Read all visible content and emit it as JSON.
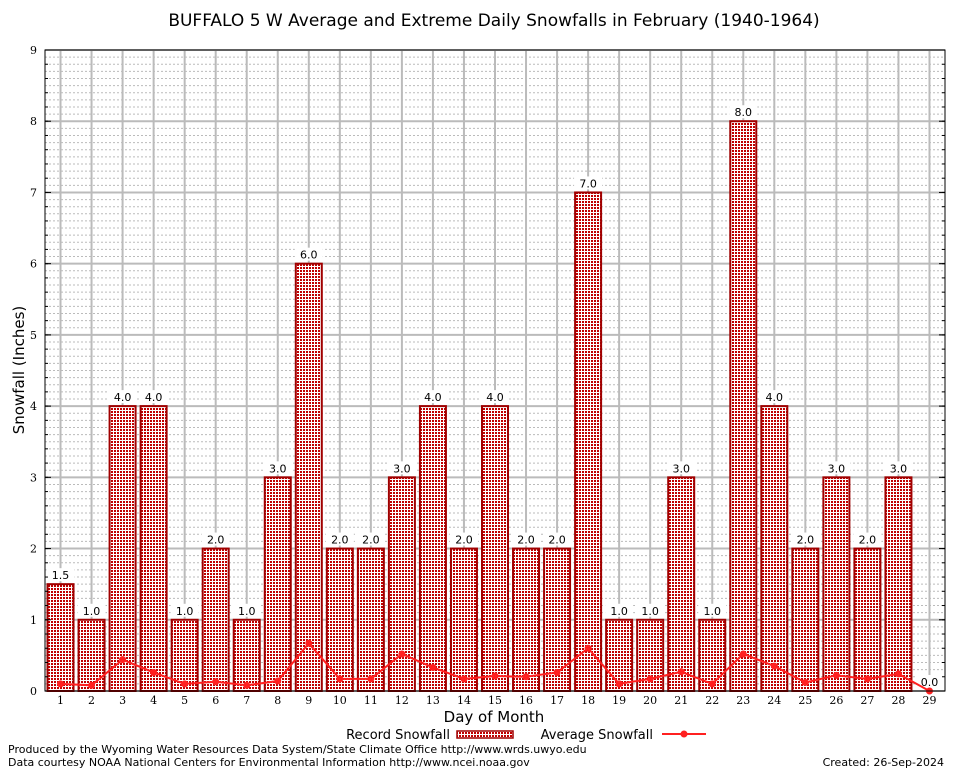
{
  "chart_data": {
    "type": "bar",
    "title": "BUFFALO 5 W Average and Extreme Daily Snowfalls in February (1940-1964)",
    "xlabel": "Day of Month",
    "ylabel": "Snowfall (Inches)",
    "ylim": [
      0,
      9
    ],
    "yticks": [
      0,
      1,
      2,
      3,
      4,
      5,
      6,
      7,
      8,
      9
    ],
    "grid": true,
    "legend_position": "bottom",
    "categories": [
      1,
      2,
      3,
      4,
      5,
      6,
      7,
      8,
      9,
      10,
      11,
      12,
      13,
      14,
      15,
      16,
      17,
      18,
      19,
      20,
      21,
      22,
      23,
      24,
      25,
      26,
      27,
      28,
      29
    ],
    "series": [
      {
        "name": "Record Snowfall",
        "type": "bar",
        "color": "#a00000",
        "values": [
          1.5,
          1.0,
          4.0,
          4.0,
          1.0,
          2.0,
          1.0,
          3.0,
          6.0,
          2.0,
          2.0,
          3.0,
          4.0,
          2.0,
          4.0,
          2.0,
          2.0,
          7.0,
          1.0,
          1.0,
          3.0,
          1.0,
          8.0,
          4.0,
          2.0,
          3.0,
          2.0,
          3.0,
          0.0
        ],
        "labels": [
          "1.5",
          "1.0",
          "4.0",
          "4.0",
          "1.0",
          "2.0",
          "1.0",
          "3.0",
          "6.0",
          "2.0",
          "2.0",
          "3.0",
          "4.0",
          "2.0",
          "4.0",
          "2.0",
          "2.0",
          "7.0",
          "1.0",
          "1.0",
          "3.0",
          "1.0",
          "8.0",
          "4.0",
          "2.0",
          "3.0",
          "2.0",
          "3.0",
          "0.0"
        ]
      },
      {
        "name": "Average Snowfall",
        "type": "line",
        "color": "#ff2020",
        "values": [
          0.1,
          0.08,
          0.44,
          0.26,
          0.1,
          0.13,
          0.08,
          0.14,
          0.67,
          0.17,
          0.17,
          0.52,
          0.33,
          0.17,
          0.21,
          0.2,
          0.26,
          0.6,
          0.1,
          0.17,
          0.27,
          0.1,
          0.52,
          0.35,
          0.12,
          0.22,
          0.17,
          0.24,
          0.0
        ]
      }
    ]
  },
  "footer": {
    "line1": "Produced by the Wyoming Water Resources Data System/State Climate Office http://www.wrds.uwyo.edu",
    "line2": "Data courtesy NOAA National Centers for Environmental Information http://www.ncei.noaa.gov",
    "created": "Created: 26-Sep-2024"
  }
}
